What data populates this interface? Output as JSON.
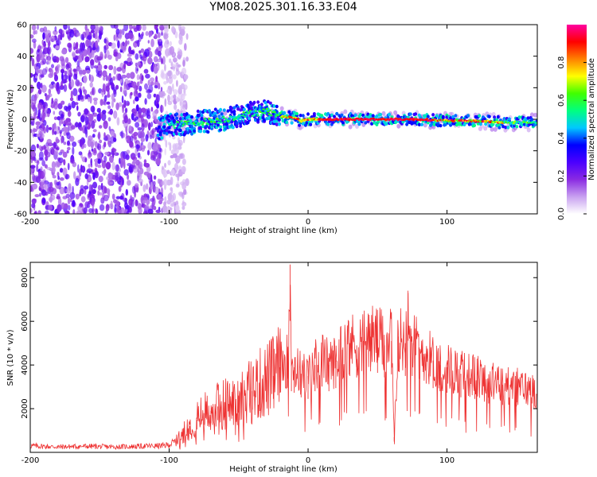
{
  "figure_title": "YM08.2025.301.16.33.E04",
  "colors": {
    "snr_line": "#ee3333",
    "axis": "#000000",
    "background": "#ffffff"
  },
  "chart_data": [
    {
      "type": "heatmap",
      "name": "spectrogram",
      "title": "YM08.2025.301.16.33.E04",
      "xlabel": "Height of straight line (km)",
      "ylabel": "Frequency (Hz)",
      "xlim": [
        -200,
        165
      ],
      "ylim": [
        -60,
        60
      ],
      "xticks": [
        -200,
        -100,
        0,
        100
      ],
      "xtick_labels": [
        "-200",
        "-100",
        "0",
        "100"
      ],
      "yticks": [
        -60,
        -40,
        -20,
        0,
        20,
        40,
        60
      ],
      "ytick_labels": [
        "-60",
        "-40",
        "-20",
        "0",
        "20",
        "40",
        "60"
      ],
      "ridge": {
        "description": "dominant frequency ridge (Hz) vs height (km)",
        "x": [
          -108,
          -100,
          -90,
          -80,
          -70,
          -60,
          -50,
          -40,
          -30,
          -25,
          -20,
          -10,
          -5,
          0,
          20,
          40,
          60,
          80,
          100,
          120,
          140,
          165
        ],
        "y": [
          -6,
          -4,
          -3,
          -2,
          -1,
          0,
          2,
          4,
          5,
          4,
          2,
          1,
          -1,
          0,
          0,
          0,
          0,
          0,
          -1,
          -1,
          -2,
          -2
        ]
      },
      "noise_region_km": [
        -200,
        -95
      ],
      "colorbar": {
        "label": "Normalized spectral amplitude",
        "range": [
          0,
          1
        ],
        "ticks": [
          0.0,
          0.2,
          0.4,
          0.6,
          0.8
        ],
        "tick_labels": [
          "0.0",
          "0.2",
          "0.4",
          "0.6",
          "0.8"
        ],
        "colors": [
          "#ffffff",
          "#c8a0f0",
          "#8a2be2",
          "#4b00ff",
          "#0000ff",
          "#00c8ff",
          "#00ff80",
          "#40ff00",
          "#ffff00",
          "#ff8000",
          "#ff0000",
          "#ff00a0"
        ]
      }
    },
    {
      "type": "line",
      "name": "snr",
      "xlabel": "Height of straight line (km)",
      "ylabel": "SNR (10 * v/v)",
      "xlim": [
        -200,
        165
      ],
      "ylim": [
        0,
        8700
      ],
      "xticks": [
        -200,
        -100,
        0,
        100
      ],
      "xtick_labels": [
        "-200",
        "-100",
        "0",
        "100"
      ],
      "yticks": [
        2000,
        4000,
        6000,
        8000
      ],
      "ytick_labels": [
        "2000",
        "4000",
        "6000",
        "8000"
      ],
      "series": [
        {
          "name": "SNR",
          "x": [
            -200,
            -180,
            -160,
            -140,
            -120,
            -105,
            -100,
            -95,
            -90,
            -85,
            -80,
            -75,
            -70,
            -65,
            -60,
            -55,
            -50,
            -45,
            -40,
            -35,
            -30,
            -25,
            -20,
            -15,
            -13,
            -12,
            -10,
            -5,
            0,
            5,
            10,
            15,
            20,
            25,
            30,
            35,
            40,
            45,
            50,
            55,
            60,
            62,
            65,
            70,
            72,
            75,
            80,
            85,
            90,
            95,
            100,
            110,
            120,
            130,
            140,
            150,
            165
          ],
          "y": [
            300,
            250,
            280,
            250,
            280,
            300,
            350,
            500,
            900,
            1200,
            1500,
            1800,
            1900,
            2100,
            2300,
            2200,
            2600,
            2700,
            2800,
            3100,
            3300,
            3500,
            3900,
            4200,
            8600,
            4000,
            3900,
            3600,
            3500,
            4000,
            4300,
            4000,
            4200,
            4800,
            5000,
            4900,
            5100,
            5300,
            5200,
            4900,
            5100,
            700,
            5300,
            5000,
            7300,
            5000,
            4800,
            4500,
            4200,
            4000,
            3900,
            3600,
            3500,
            3200,
            3100,
            3000,
            2800
          ]
        }
      ]
    }
  ]
}
